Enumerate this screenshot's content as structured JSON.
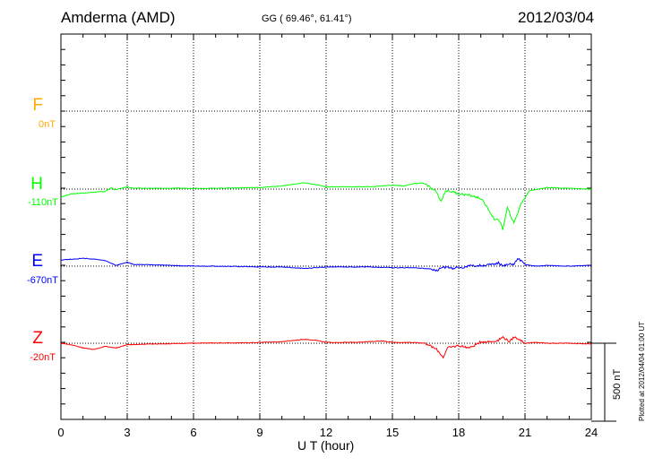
{
  "header": {
    "station": "Amderma (AMD)",
    "coords": "GG ( 69.46°,  61.41°)",
    "date": "2012/03/04"
  },
  "footnote": "Plotted at 2012/04/04 01:00 UT",
  "chart_data": {
    "type": "line",
    "title": "Amderma (AMD)",
    "xlabel": "U T (hour)",
    "ylabel": "",
    "xlim": [
      0,
      24
    ],
    "xticks": [
      0,
      3,
      6,
      9,
      12,
      15,
      18,
      21,
      24
    ],
    "grid": true,
    "scale_bar": {
      "value": 500,
      "label": "500 nT"
    },
    "components": [
      {
        "letter": "F",
        "baseline": "0nT",
        "color": "#ffaa00",
        "x": [],
        "values": []
      },
      {
        "letter": "H",
        "baseline": "-110nT",
        "color": "#00ff00",
        "x": [
          0,
          0.5,
          1,
          1.5,
          2,
          2.3,
          2.4,
          2.6,
          3,
          3.3,
          4,
          5,
          6,
          7,
          8,
          9,
          10,
          11,
          11.5,
          12,
          13,
          14,
          15,
          15.5,
          16,
          16.4,
          16.8,
          17,
          17.2,
          17.4,
          17.8,
          18,
          18.5,
          19,
          19.3,
          19.6,
          19.9,
          20.0,
          20.2,
          20.5,
          20.8,
          21.2,
          22,
          23,
          24
        ],
        "values": [
          -50,
          -30,
          -25,
          -20,
          -15,
          10,
          -5,
          0,
          15,
          5,
          5,
          5,
          5,
          5,
          8,
          10,
          20,
          40,
          30,
          15,
          15,
          15,
          25,
          20,
          35,
          40,
          0,
          -20,
          -80,
          -10,
          -20,
          -30,
          -40,
          -60,
          -120,
          -190,
          -210,
          -260,
          -120,
          -220,
          -100,
          -10,
          10,
          5,
          0
        ]
      },
      {
        "letter": "E",
        "baseline": "-670nT",
        "color": "#0000ff",
        "x": [
          0,
          0.5,
          1,
          1.5,
          2,
          2.5,
          3,
          3.3,
          4,
          5,
          6,
          7,
          8,
          9,
          10,
          11,
          12,
          13,
          14,
          15,
          16,
          16.5,
          17,
          17.3,
          17.6,
          18,
          18.5,
          19,
          19.5,
          19.8,
          20,
          20.2,
          20.5,
          20.7,
          21,
          21.5,
          22,
          23,
          24
        ],
        "values": [
          40,
          45,
          50,
          45,
          35,
          5,
          25,
          10,
          10,
          5,
          0,
          0,
          -2,
          -5,
          -5,
          -15,
          -5,
          -5,
          -5,
          -10,
          -10,
          -15,
          -30,
          -5,
          -15,
          -10,
          0,
          5,
          10,
          20,
          0,
          10,
          15,
          50,
          10,
          0,
          5,
          0,
          5
        ]
      },
      {
        "letter": "Z",
        "baseline": "-20nT",
        "color": "#ff0000",
        "x": [
          0,
          0.5,
          1,
          1.5,
          2,
          2.5,
          3,
          4,
          5,
          6,
          7,
          8,
          9,
          10,
          11,
          11.5,
          12,
          13,
          14,
          14.5,
          15,
          16,
          16.5,
          17,
          17.3,
          17.5,
          18,
          18.5,
          19,
          19.5,
          19.8,
          20,
          20.3,
          20.5,
          20.7,
          21,
          21.5,
          22,
          23,
          24
        ],
        "values": [
          0,
          -10,
          -30,
          -40,
          -20,
          -30,
          -10,
          -5,
          -3,
          0,
          2,
          2,
          5,
          10,
          25,
          20,
          5,
          5,
          10,
          15,
          5,
          5,
          0,
          -40,
          -90,
          -30,
          -15,
          -30,
          10,
          10,
          20,
          40,
          10,
          40,
          30,
          0,
          5,
          0,
          0,
          -5
        ]
      }
    ]
  }
}
